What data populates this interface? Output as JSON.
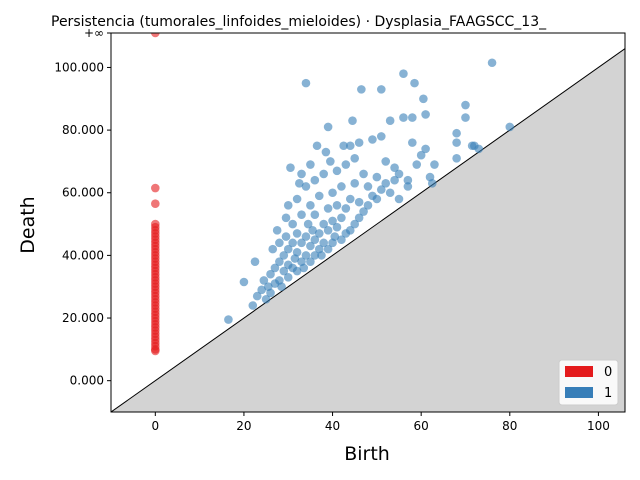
{
  "chart_data": {
    "type": "scatter",
    "title": "Persistencia (tumorales_linfoides_mieloides) · Dysplasia_FAAGSCC_13_",
    "xlabel": "Birth",
    "ylabel": "Death",
    "xlim": [
      -10,
      106
    ],
    "ylim": [
      -10,
      111
    ],
    "x_ticks": [
      0,
      20,
      40,
      60,
      80,
      100
    ],
    "y_ticks": [
      0,
      20,
      40,
      60,
      80,
      100
    ],
    "y_tick_labels": [
      "0.000",
      "20.000",
      "40.000",
      "60.000",
      "80.000",
      "100.000"
    ],
    "infinity_label": "+∞",
    "infinity_value": 111,
    "diagonal": true,
    "legend_position": "bottom-right",
    "legend_entries": [
      "0",
      "1"
    ],
    "colors": {
      "0": "#e41a1c",
      "1": "#377eb8",
      "diagonal_fill": "#d3d3d3"
    },
    "series": [
      {
        "name": "0",
        "points": [
          [
            0,
            111
          ],
          [
            0,
            61.5
          ],
          [
            0,
            56.5
          ],
          [
            0,
            50
          ],
          [
            0,
            49
          ],
          [
            0,
            48
          ],
          [
            0,
            47
          ],
          [
            0,
            46
          ],
          [
            0,
            45
          ],
          [
            0,
            44
          ],
          [
            0,
            43
          ],
          [
            0,
            42
          ],
          [
            0,
            41
          ],
          [
            0,
            40
          ],
          [
            0,
            39
          ],
          [
            0,
            38
          ],
          [
            0,
            37
          ],
          [
            0,
            36
          ],
          [
            0,
            35
          ],
          [
            0,
            34
          ],
          [
            0,
            33
          ],
          [
            0,
            32
          ],
          [
            0,
            31
          ],
          [
            0,
            30
          ],
          [
            0,
            29
          ],
          [
            0,
            28
          ],
          [
            0,
            27
          ],
          [
            0,
            26
          ],
          [
            0,
            25
          ],
          [
            0,
            24
          ],
          [
            0,
            23
          ],
          [
            0,
            22
          ],
          [
            0,
            21
          ],
          [
            0,
            20
          ],
          [
            0,
            19
          ],
          [
            0,
            18
          ],
          [
            0,
            17
          ],
          [
            0,
            16
          ],
          [
            0,
            15
          ],
          [
            0,
            14
          ],
          [
            0,
            13
          ],
          [
            0,
            12
          ],
          [
            0,
            11
          ],
          [
            0,
            10
          ],
          [
            0,
            9.5
          ]
        ]
      },
      {
        "name": "1",
        "points": [
          [
            16.5,
            19.5
          ],
          [
            20,
            31.5
          ],
          [
            22,
            24
          ],
          [
            22.5,
            38
          ],
          [
            23,
            27
          ],
          [
            24,
            29
          ],
          [
            24.5,
            32
          ],
          [
            25,
            26
          ],
          [
            25.5,
            30
          ],
          [
            26,
            28
          ],
          [
            26,
            34
          ],
          [
            26.5,
            42
          ],
          [
            27,
            31
          ],
          [
            27,
            36
          ],
          [
            27.5,
            48
          ],
          [
            28,
            32
          ],
          [
            28,
            38
          ],
          [
            28,
            44
          ],
          [
            28.5,
            30
          ],
          [
            29,
            35
          ],
          [
            29,
            40
          ],
          [
            29.5,
            46
          ],
          [
            29.5,
            52
          ],
          [
            30,
            33
          ],
          [
            30,
            37
          ],
          [
            30,
            42
          ],
          [
            30,
            56
          ],
          [
            30.5,
            68
          ],
          [
            31,
            36
          ],
          [
            31,
            44
          ],
          [
            31,
            50
          ],
          [
            31.5,
            39
          ],
          [
            32,
            35
          ],
          [
            32,
            41
          ],
          [
            32,
            47
          ],
          [
            32,
            58
          ],
          [
            32.5,
            63
          ],
          [
            33,
            38
          ],
          [
            33,
            44
          ],
          [
            33,
            53
          ],
          [
            33,
            66
          ],
          [
            33.5,
            36
          ],
          [
            34,
            40
          ],
          [
            34,
            46
          ],
          [
            34,
            62
          ],
          [
            34,
            95
          ],
          [
            34.5,
            50
          ],
          [
            35,
            38
          ],
          [
            35,
            43
          ],
          [
            35,
            56
          ],
          [
            35,
            69
          ],
          [
            35.5,
            48
          ],
          [
            36,
            40
          ],
          [
            36,
            45
          ],
          [
            36,
            53
          ],
          [
            36,
            64
          ],
          [
            36.5,
            75
          ],
          [
            37,
            42
          ],
          [
            37,
            47
          ],
          [
            37,
            59
          ],
          [
            37.5,
            40
          ],
          [
            38,
            44
          ],
          [
            38,
            50
          ],
          [
            38,
            66
          ],
          [
            38.5,
            73
          ],
          [
            39,
            42
          ],
          [
            39,
            48
          ],
          [
            39,
            55
          ],
          [
            39,
            81
          ],
          [
            39.5,
            70
          ],
          [
            40,
            44
          ],
          [
            40,
            51
          ],
          [
            40,
            60
          ],
          [
            40.5,
            46
          ],
          [
            41,
            49
          ],
          [
            41,
            56
          ],
          [
            41,
            67
          ],
          [
            42,
            45
          ],
          [
            42,
            52
          ],
          [
            42,
            62
          ],
          [
            42.5,
            75
          ],
          [
            43,
            47
          ],
          [
            43,
            55
          ],
          [
            43,
            69
          ],
          [
            44,
            48
          ],
          [
            44,
            58
          ],
          [
            44,
            75
          ],
          [
            44.5,
            83
          ],
          [
            45,
            50
          ],
          [
            45,
            63
          ],
          [
            45,
            71
          ],
          [
            46,
            52
          ],
          [
            46,
            57
          ],
          [
            46,
            76
          ],
          [
            46.5,
            93
          ],
          [
            47,
            54
          ],
          [
            47,
            66
          ],
          [
            48,
            56
          ],
          [
            48,
            62
          ],
          [
            49,
            59
          ],
          [
            49,
            77
          ],
          [
            50,
            58
          ],
          [
            50,
            65
          ],
          [
            51,
            61
          ],
          [
            51,
            78
          ],
          [
            51,
            93
          ],
          [
            52,
            63
          ],
          [
            52,
            70
          ],
          [
            53,
            60
          ],
          [
            53,
            83
          ],
          [
            54,
            64
          ],
          [
            54,
            68
          ],
          [
            55,
            58
          ],
          [
            55,
            66
          ],
          [
            56,
            84
          ],
          [
            56,
            98
          ],
          [
            57,
            64
          ],
          [
            57,
            62
          ],
          [
            58,
            76
          ],
          [
            58,
            84
          ],
          [
            58.5,
            95
          ],
          [
            59,
            69
          ],
          [
            60,
            72
          ],
          [
            60.5,
            90
          ],
          [
            61,
            74
          ],
          [
            61,
            85
          ],
          [
            62,
            65
          ],
          [
            62.5,
            63
          ],
          [
            63,
            69
          ],
          [
            68,
            71
          ],
          [
            68,
            76
          ],
          [
            68,
            79
          ],
          [
            70,
            84
          ],
          [
            70,
            88
          ],
          [
            71.5,
            75
          ],
          [
            72,
            75
          ],
          [
            73,
            74
          ],
          [
            76,
            101.5
          ],
          [
            80,
            81
          ]
        ]
      }
    ]
  }
}
